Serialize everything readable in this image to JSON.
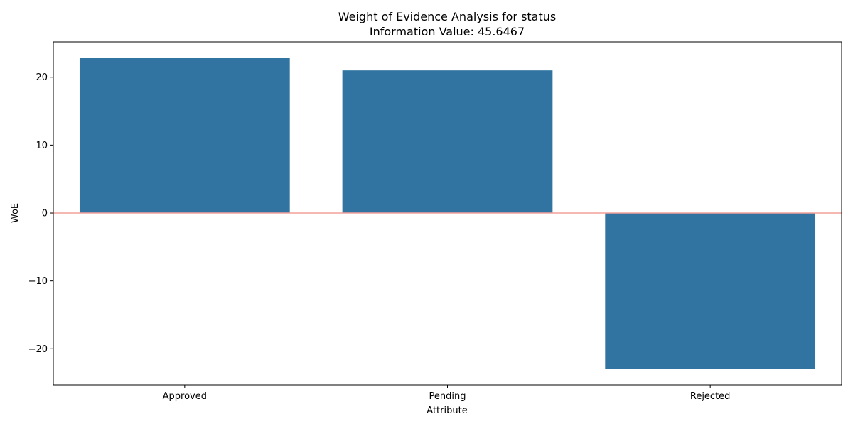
{
  "chart_data": {
    "type": "bar",
    "title": "Weight of Evidence Analysis for status",
    "subtitle": "Information Value: 45.6467",
    "xlabel": "Attribute",
    "ylabel": "WoE",
    "categories": [
      "Approved",
      "Pending",
      "Rejected"
    ],
    "values": [
      22.9,
      21.0,
      -23.0
    ],
    "ylim": [
      -25.3,
      25.2
    ],
    "yticks": [
      -20,
      -10,
      0,
      10,
      20
    ],
    "ytick_labels": [
      "−20",
      "−10",
      "0",
      "10",
      "20"
    ],
    "grid": false,
    "reference_line": {
      "y": 0,
      "color": "#f4a09a"
    },
    "bar_color": "#3274a1"
  }
}
